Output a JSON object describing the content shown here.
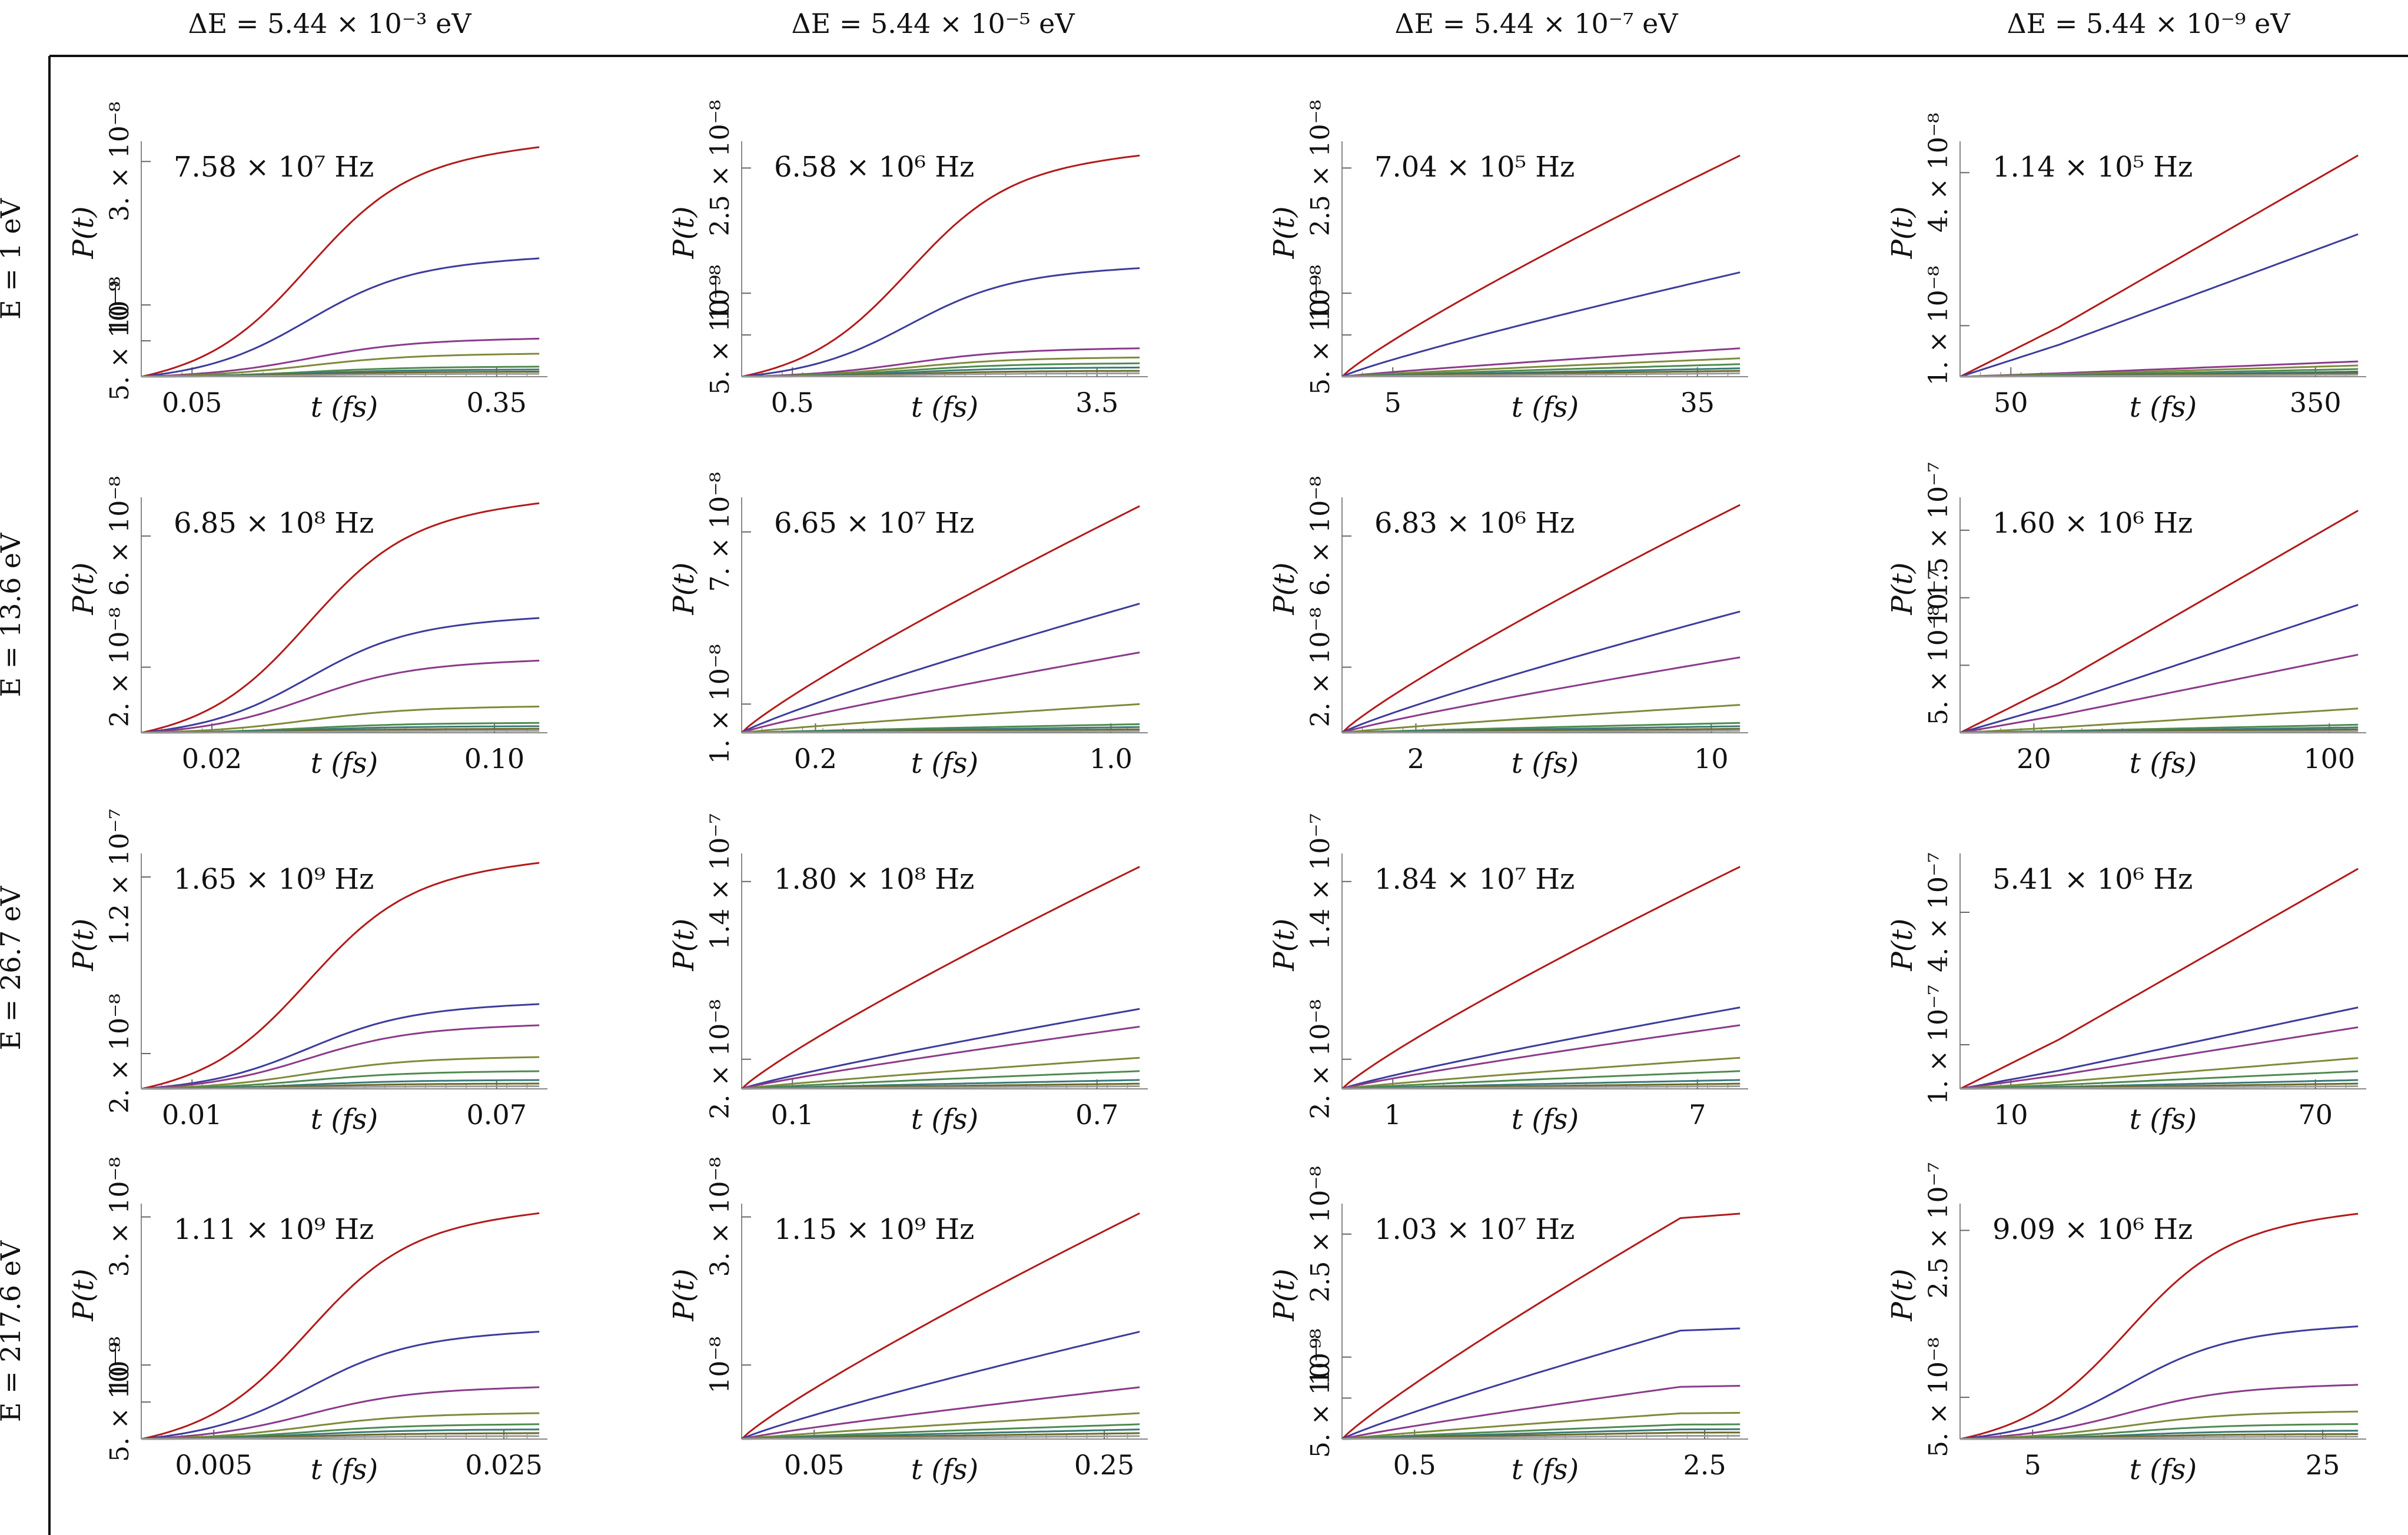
{
  "figure": {
    "column_headers": [
      "ΔE = 5.44 × 10⁻³ eV",
      "ΔE = 5.44 × 10⁻⁵ eV",
      "ΔE = 5.44 × 10⁻⁷ eV",
      "ΔE = 5.44 × 10⁻⁹ eV"
    ],
    "row_headers": [
      "E = 1 eV",
      "E = 13.6 eV",
      "E = 26.7 eV",
      "E = 217.6 eV"
    ],
    "series_colors": [
      "#b21a1a",
      "#3c3c9c",
      "#8b3a8b",
      "#7f8a3a",
      "#4f8a4f",
      "#3a7a7a",
      "#6a6a2a",
      "#9a9a9a"
    ]
  },
  "chart_data": [
    {
      "type": "line",
      "row": 0,
      "col": 0,
      "freq_label": "7.58 × 10⁷ Hz",
      "xlabel": "t (fs)",
      "ylabel": "P(t)",
      "xlim": [
        0,
        0.4
      ],
      "ylim": [
        0,
        3.2e-08
      ],
      "xticks": [
        0.05,
        0.35
      ],
      "xtick_labels": [
        "0.05",
        "0.35"
      ],
      "yticks": [
        5e-09,
        1e-08,
        3e-08
      ],
      "ytick_labels": [
        "5. × 10⁻⁹",
        "10⁻⁸",
        "3. × 10⁻⁸"
      ],
      "shape": "s",
      "series_final": [
        3.2e-08,
        1.65e-08,
        5.3e-09,
        3.2e-09,
        1.4e-09,
        1e-09,
        7e-10,
        4e-10
      ]
    },
    {
      "type": "line",
      "row": 0,
      "col": 1,
      "freq_label": "6.58 × 10⁶ Hz",
      "xlabel": "t (fs)",
      "ylabel": "P(t)",
      "xlim": [
        0,
        4.0
      ],
      "ylim": [
        0,
        2.75e-08
      ],
      "xticks": [
        0.5,
        3.5
      ],
      "xtick_labels": [
        "0.5",
        "3.5"
      ],
      "yticks": [
        5e-09,
        1e-08,
        2.5e-08
      ],
      "ytick_labels": [
        "5. × 10⁻⁹",
        "10⁻⁸",
        "2.5 × 10⁻⁸"
      ],
      "shape": "s",
      "series_final": [
        2.65e-08,
        1.3e-08,
        3.4e-09,
        2.3e-09,
        1.6e-09,
        1.1e-09,
        7e-10,
        4e-10
      ]
    },
    {
      "type": "line",
      "row": 0,
      "col": 2,
      "freq_label": "7.04 × 10⁵ Hz",
      "xlabel": "t (fs)",
      "ylabel": "P(t)",
      "xlim": [
        0,
        40
      ],
      "ylim": [
        0,
        2.75e-08
      ],
      "xticks": [
        5,
        35
      ],
      "xtick_labels": [
        "5",
        "35"
      ],
      "yticks": [
        5e-09,
        1e-08,
        2.5e-08
      ],
      "ytick_labels": [
        "5. × 10⁻⁹",
        "10⁻⁸",
        "2.5 × 10⁻⁸"
      ],
      "shape": "linear",
      "series_final": [
        2.65e-08,
        1.25e-08,
        3.4e-09,
        2.2e-09,
        1.5e-09,
        1e-09,
        7e-10,
        4e-10
      ]
    },
    {
      "type": "line",
      "row": 0,
      "col": 3,
      "freq_label": "1.14 × 10⁵ Hz",
      "xlabel": "t (fs)",
      "ylabel": "P(t)",
      "xlim": [
        0,
        400
      ],
      "ylim": [
        0,
        4.5e-08
      ],
      "xticks": [
        50,
        350
      ],
      "xtick_labels": [
        "50",
        "350"
      ],
      "yticks": [
        1e-08,
        4e-08
      ],
      "ytick_labels": [
        "1. × 10⁻⁸",
        "4. × 10⁻⁸"
      ],
      "shape": "kink",
      "series_final": [
        4.35e-08,
        2.8e-08,
        3e-09,
        2.2e-09,
        1.5e-09,
        1e-09,
        7e-10,
        4e-10
      ]
    },
    {
      "type": "line",
      "row": 1,
      "col": 0,
      "freq_label": "6.85 × 10⁸ Hz",
      "xlabel": "t (fs)",
      "ylabel": "P(t)",
      "xlim": [
        0,
        0.115
      ],
      "ylim": [
        0,
        7e-08
      ],
      "xticks": [
        0.02,
        0.1
      ],
      "xtick_labels": [
        "0.02",
        "0.10"
      ],
      "yticks": [
        2e-08,
        6e-08
      ],
      "ytick_labels": [
        "2. × 10⁻⁸",
        "6. × 10⁻⁸"
      ],
      "shape": "s",
      "series_final": [
        7e-08,
        3.5e-08,
        2.2e-08,
        8e-09,
        3e-09,
        2e-09,
        1.2e-09,
        6e-10
      ]
    },
    {
      "type": "line",
      "row": 1,
      "col": 1,
      "freq_label": "6.65 × 10⁷ Hz",
      "xlabel": "t (fs)",
      "ylabel": "P(t)",
      "xlim": [
        0,
        1.1
      ],
      "ylim": [
        0,
        8e-08
      ],
      "xticks": [
        0.2,
        1.0
      ],
      "xtick_labels": [
        "0.2",
        "1.0"
      ],
      "yticks": [
        1e-08,
        7e-08
      ],
      "ytick_labels": [
        "1. × 10⁻⁸",
        "7. × 10⁻⁸"
      ],
      "shape": "linear",
      "series_final": [
        7.9e-08,
        4.5e-08,
        2.8e-08,
        1e-08,
        3e-09,
        2e-09,
        1.2e-09,
        6e-10
      ]
    },
    {
      "type": "line",
      "row": 1,
      "col": 2,
      "freq_label": "6.83 × 10⁶ Hz",
      "xlabel": "t (fs)",
      "ylabel": "P(t)",
      "xlim": [
        0,
        11
      ],
      "ylim": [
        0,
        7e-08
      ],
      "xticks": [
        2,
        10
      ],
      "xtick_labels": [
        "2",
        "10"
      ],
      "yticks": [
        2e-08,
        6e-08
      ],
      "ytick_labels": [
        "2. × 10⁻⁸",
        "6. × 10⁻⁸"
      ],
      "shape": "linear",
      "series_final": [
        6.95e-08,
        3.7e-08,
        2.3e-08,
        8.5e-09,
        3e-09,
        2e-09,
        1.2e-09,
        6e-10
      ]
    },
    {
      "type": "line",
      "row": 1,
      "col": 3,
      "freq_label": "1.60 × 10⁶ Hz",
      "xlabel": "t (fs)",
      "ylabel": "P(t)",
      "xlim": [
        0,
        110
      ],
      "ylim": [
        0,
        1.7e-07
      ],
      "xticks": [
        20,
        100
      ],
      "xtick_labels": [
        "20",
        "100"
      ],
      "yticks": [
        5e-08,
        1e-07,
        1.5e-07
      ],
      "ytick_labels": [
        "5. × 10⁻⁸",
        "10⁻⁷",
        "1.5 × 10⁻⁷"
      ],
      "shape": "kink",
      "series_final": [
        1.65e-07,
        9.5e-08,
        5.8e-08,
        1.8e-08,
        6e-09,
        4e-09,
        2.5e-09,
        1.2e-09
      ]
    },
    {
      "type": "line",
      "row": 2,
      "col": 0,
      "freq_label": "1.65 × 10⁹ Hz",
      "xlabel": "t (fs)",
      "ylabel": "P(t)",
      "xlim": [
        0,
        0.08
      ],
      "ylim": [
        0,
        1.3e-07
      ],
      "xticks": [
        0.01,
        0.07
      ],
      "xtick_labels": [
        "0.01",
        "0.07"
      ],
      "yticks": [
        2e-08,
        1.2e-07
      ],
      "ytick_labels": [
        "2. × 10⁻⁸",
        "1.2 × 10⁻⁷"
      ],
      "shape": "s",
      "series_final": [
        1.28e-07,
        4.8e-08,
        3.6e-08,
        1.8e-08,
        1e-08,
        5e-09,
        3e-09,
        1.5e-09
      ]
    },
    {
      "type": "line",
      "row": 2,
      "col": 1,
      "freq_label": "1.80 × 10⁸ Hz",
      "xlabel": "t (fs)",
      "ylabel": "P(t)",
      "xlim": [
        0,
        0.8
      ],
      "ylim": [
        0,
        1.55e-07
      ],
      "xticks": [
        0.1,
        0.7
      ],
      "xtick_labels": [
        "0.1",
        "0.7"
      ],
      "yticks": [
        2e-08,
        1.4e-07
      ],
      "ytick_labels": [
        "2. × 10⁻⁸",
        "1.4 × 10⁻⁷"
      ],
      "shape": "linear",
      "series_final": [
        1.5e-07,
        5.4e-08,
        4.2e-08,
        2.1e-08,
        1.2e-08,
        6e-09,
        3.5e-09,
        1.8e-09
      ]
    },
    {
      "type": "line",
      "row": 2,
      "col": 2,
      "freq_label": "1.84 × 10⁷ Hz",
      "xlabel": "t (fs)",
      "ylabel": "P(t)",
      "xlim": [
        0,
        8
      ],
      "ylim": [
        0,
        1.55e-07
      ],
      "xticks": [
        1,
        7
      ],
      "xtick_labels": [
        "1",
        "7"
      ],
      "yticks": [
        2e-08,
        1.4e-07
      ],
      "ytick_labels": [
        "2. × 10⁻⁸",
        "1.4 × 10⁻⁷"
      ],
      "shape": "linear",
      "series_final": [
        1.5e-07,
        5.5e-08,
        4.3e-08,
        2.1e-08,
        1.2e-08,
        6e-09,
        3.5e-09,
        1.8e-09
      ]
    },
    {
      "type": "line",
      "row": 2,
      "col": 3,
      "freq_label": "5.41 × 10⁶ Hz",
      "xlabel": "t (fs)",
      "ylabel": "P(t)",
      "xlim": [
        0,
        80
      ],
      "ylim": [
        0,
        5.2e-07
      ],
      "xticks": [
        10,
        70
      ],
      "xtick_labels": [
        "10",
        "70"
      ],
      "yticks": [
        1e-07,
        4e-07
      ],
      "ytick_labels": [
        "1. × 10⁻⁷",
        "4. × 10⁻⁷"
      ],
      "shape": "kink",
      "series_final": [
        5e-07,
        1.85e-07,
        1.4e-07,
        7e-08,
        4e-08,
        2e-08,
        1.2e-08,
        6e-09
      ]
    },
    {
      "type": "line",
      "row": 3,
      "col": 0,
      "freq_label": "1.11 × 10⁹ Hz",
      "xlabel": "t (fs)",
      "ylabel": "P(t)",
      "xlim": [
        0,
        0.028
      ],
      "ylim": [
        0,
        3.1e-08
      ],
      "xticks": [
        0.005,
        0.025
      ],
      "xtick_labels": [
        "0.005",
        "0.025"
      ],
      "yticks": [
        5e-09,
        1e-08,
        3e-08
      ],
      "ytick_labels": [
        "5. × 10⁻⁹",
        "10⁻⁸",
        "3. × 10⁻⁸"
      ],
      "shape": "s",
      "series_final": [
        3.05e-08,
        1.45e-08,
        7e-09,
        3.5e-09,
        2e-09,
        1.3e-09,
        8e-10,
        4e-10
      ]
    },
    {
      "type": "line",
      "row": 3,
      "col": 1,
      "freq_label": "1.15 × 10⁹ Hz",
      "xlabel": "t (fs)",
      "ylabel": "P(t)",
      "xlim": [
        0,
        0.28
      ],
      "ylim": [
        0,
        3.1e-08
      ],
      "xticks": [
        0.05,
        0.25
      ],
      "xtick_labels": [
        "0.05",
        "0.25"
      ],
      "yticks": [
        1e-08,
        3e-08
      ],
      "ytick_labels": [
        "10⁻⁸",
        "3. × 10⁻⁸"
      ],
      "shape": "linear",
      "series_final": [
        3.05e-08,
        1.45e-08,
        7e-09,
        3.5e-09,
        2e-09,
        1.3e-09,
        8e-10,
        4e-10
      ]
    },
    {
      "type": "line",
      "row": 3,
      "col": 2,
      "freq_label": "1.03 × 10⁷ Hz",
      "xlabel": "t (fs)",
      "ylabel": "P(t)",
      "xlim": [
        0,
        2.8
      ],
      "ylim": [
        0,
        2.8e-08
      ],
      "xticks": [
        0.5,
        2.5
      ],
      "xtick_labels": [
        "0.5",
        "2.5"
      ],
      "yticks": [
        5e-09,
        1e-08,
        2.5e-08
      ],
      "ytick_labels": [
        "5. × 10⁻⁹",
        "10⁻⁸",
        "2.5 × 10⁻⁸"
      ],
      "shape": "plateau",
      "series_final": [
        2.75e-08,
        1.35e-08,
        6.5e-09,
        3.2e-09,
        1.8e-09,
        1.2e-09,
        8e-10,
        4e-10
      ]
    },
    {
      "type": "line",
      "row": 3,
      "col": 3,
      "freq_label": "9.09 × 10⁶ Hz",
      "xlabel": "t (fs)",
      "ylabel": "P(t)",
      "xlim": [
        0,
        28
      ],
      "ylim": [
        0,
        2.75e-07
      ],
      "xticks": [
        5,
        25
      ],
      "xtick_labels": [
        "5",
        "25"
      ],
      "yticks": [
        5e-08,
        2.5e-07
      ],
      "ytick_labels": [
        "5. × 10⁻⁸",
        "2.5 × 10⁻⁷"
      ],
      "shape": "s",
      "series_final": [
        2.7e-07,
        1.35e-07,
        6.5e-08,
        3.3e-08,
        1.8e-08,
        1e-08,
        6e-09,
        3e-09
      ]
    }
  ]
}
